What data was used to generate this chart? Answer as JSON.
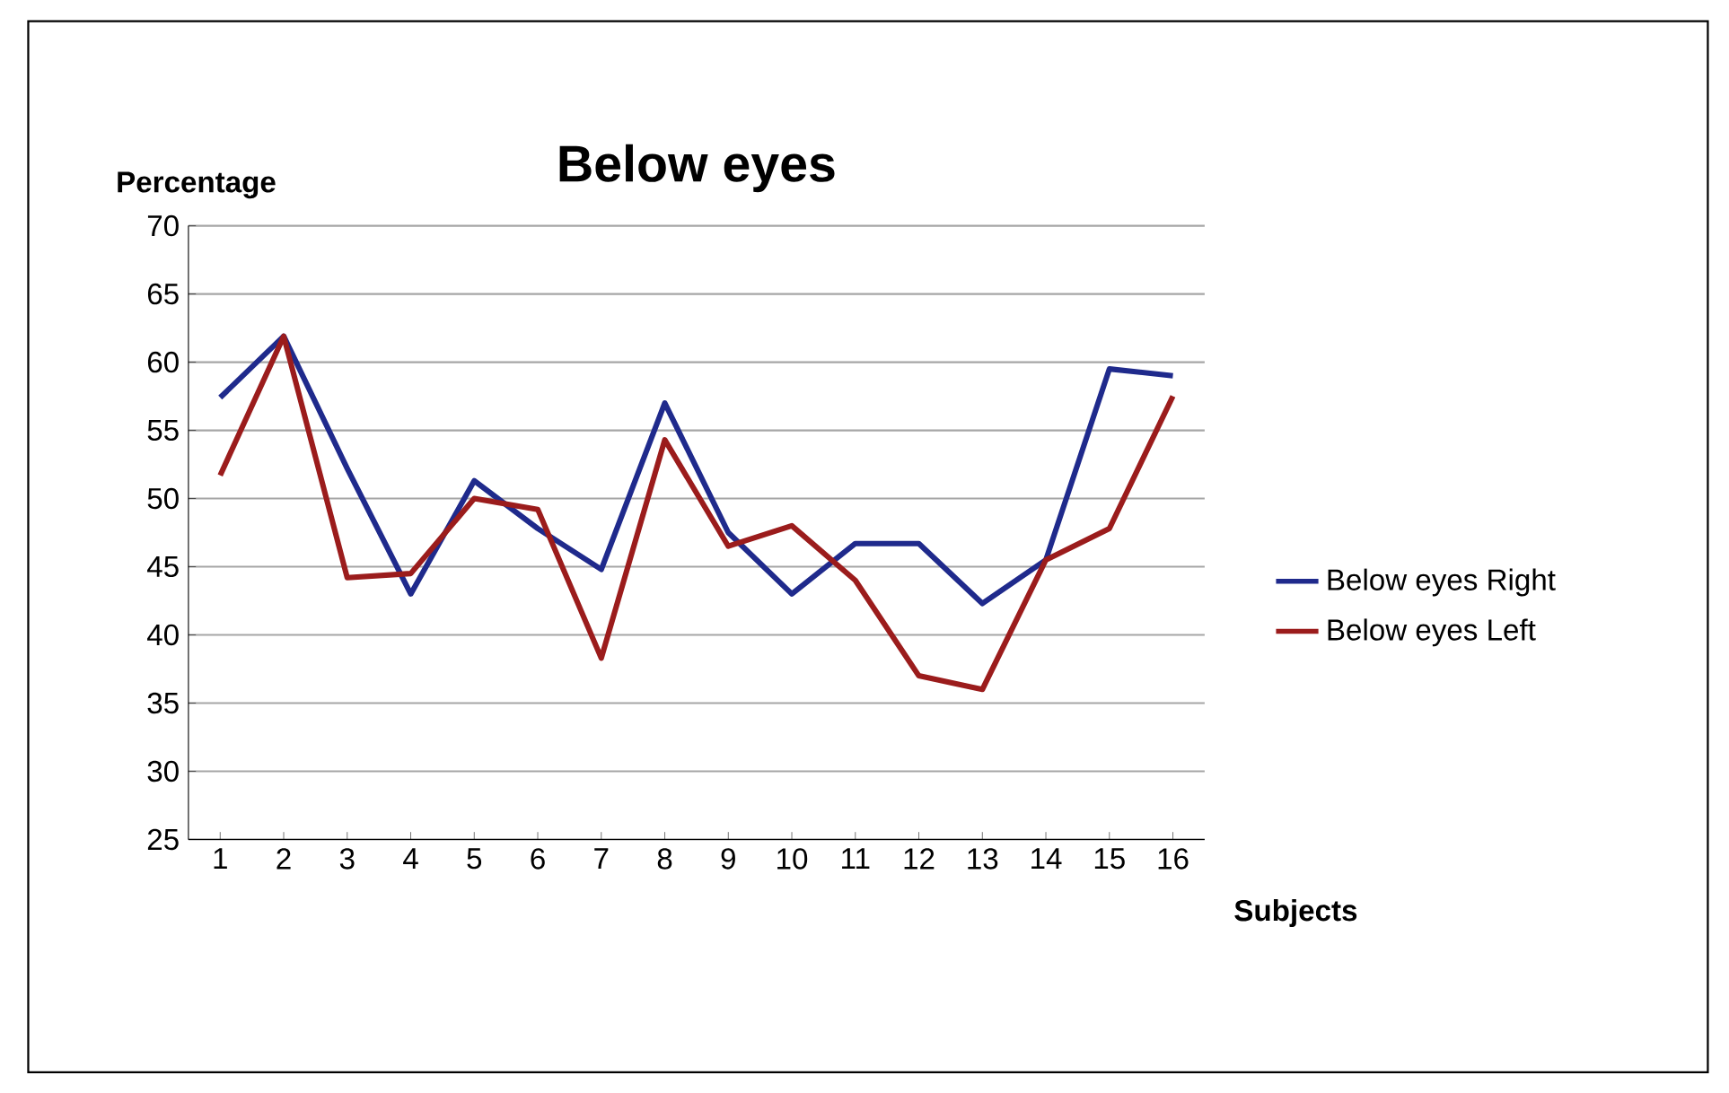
{
  "chart_data": {
    "type": "line",
    "title": "Below eyes",
    "xlabel": "Subjects",
    "ylabel": "Percentage",
    "categories": [
      "1",
      "2",
      "3",
      "4",
      "5",
      "6",
      "7",
      "8",
      "9",
      "10",
      "11",
      "12",
      "13",
      "14",
      "15",
      "16"
    ],
    "series": [
      {
        "name": "Below eyes Right",
        "color": "#1f2a8c",
        "values": [
          57.4,
          61.9,
          52.2,
          43,
          51.3,
          47.8,
          44.8,
          57,
          47.5,
          43,
          46.7,
          46.7,
          42.3,
          45.5,
          59.5,
          59
        ]
      },
      {
        "name": "Below eyes Left",
        "color": "#9b1c1c",
        "values": [
          51.7,
          61.9,
          44.2,
          44.5,
          50,
          49.2,
          38.3,
          54.3,
          46.5,
          48,
          44,
          37,
          36,
          45.5,
          47.8,
          57.5
        ]
      }
    ],
    "ylim": [
      25,
      70
    ],
    "yticks": [
      25,
      30,
      35,
      40,
      45,
      50,
      55,
      60,
      65,
      70
    ],
    "grid": "y",
    "legend": "right",
    "marker": "none",
    "line_style": "solid"
  }
}
